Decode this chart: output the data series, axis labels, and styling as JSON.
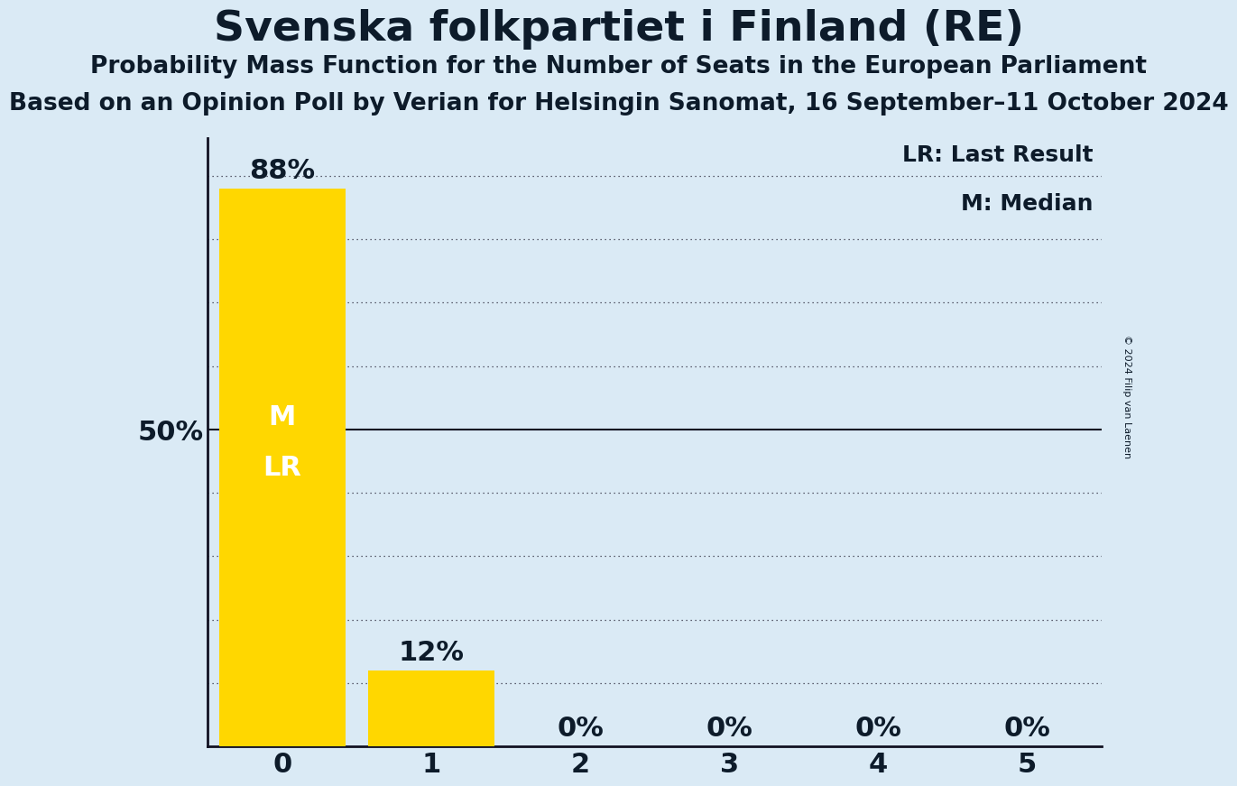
{
  "title": "Svenska folkpartiet i Finland (RE)",
  "subtitle": "Probability Mass Function for the Number of Seats in the European Parliament",
  "poll_info": "Based on an Opinion Poll by Verian for Helsingin Sanomat, 16 September–11 October 2024",
  "copyright": "© 2024 Filip van Laenen",
  "categories": [
    0,
    1,
    2,
    3,
    4,
    5
  ],
  "values": [
    0.88,
    0.12,
    0.0,
    0.0,
    0.0,
    0.0
  ],
  "bar_color": "#FFD700",
  "bar_labels": [
    "88%",
    "12%",
    "0%",
    "0%",
    "0%",
    "0%"
  ],
  "background_color": "#daeaf5",
  "text_color": "#0d1b2a",
  "ylabel_text": "50%",
  "ylabel_value": 0.5,
  "legend_lr": "LR: Last Result",
  "legend_m": "M: Median",
  "median_seat": 0,
  "last_result_seat": 0,
  "xlim": [
    -0.5,
    5.5
  ],
  "ylim": [
    0,
    0.96
  ],
  "yticks": [
    0.1,
    0.2,
    0.3,
    0.4,
    0.5,
    0.6,
    0.7,
    0.8,
    0.9
  ],
  "solid_line_y": 0.5,
  "bar_width": 0.85,
  "bar_label_fontsize": 22,
  "inner_label_fontsize": 22,
  "title_fontsize": 34,
  "subtitle_fontsize": 19,
  "poll_fontsize": 19,
  "axis_tick_fontsize": 22,
  "legend_fontsize": 18
}
